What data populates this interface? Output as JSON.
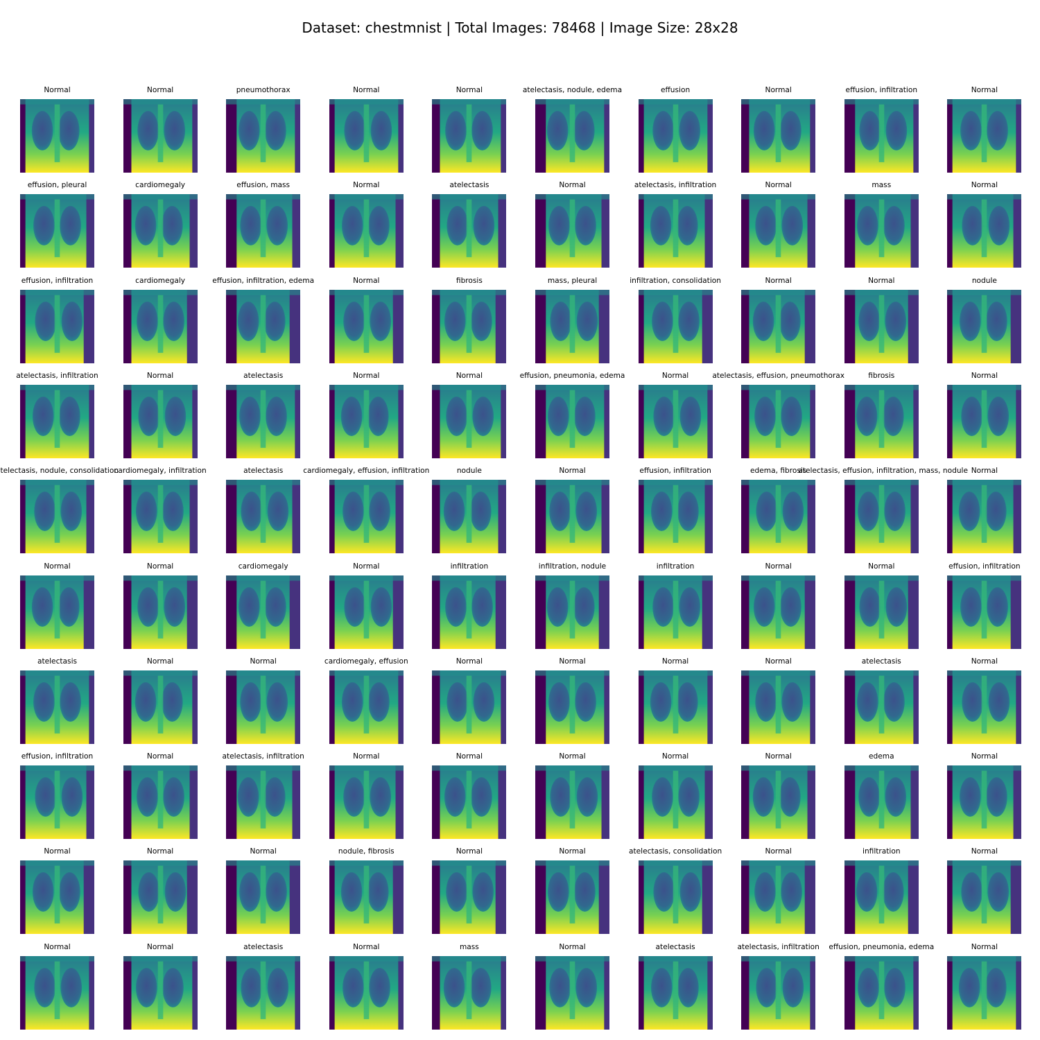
{
  "figure": {
    "title": "Dataset: chestmnist | Total Images: 78468 | Image Size: 28x28",
    "colormap": "viridis",
    "rows": 10,
    "cols": 10
  },
  "labels": [
    [
      "Normal",
      "Normal",
      "pneumothorax",
      "Normal",
      "Normal",
      "atelectasis, nodule, edema",
      "effusion",
      "Normal",
      "effusion, infiltration",
      "Normal"
    ],
    [
      "effusion, pleural",
      "cardiomegaly",
      "effusion, mass",
      "Normal",
      "atelectasis",
      "Normal",
      "atelectasis, infiltration",
      "Normal",
      "mass",
      "Normal"
    ],
    [
      "effusion, infiltration",
      "cardiomegaly",
      "effusion, infiltration, edema",
      "Normal",
      "fibrosis",
      "mass, pleural",
      "infiltration, consolidation",
      "Normal",
      "Normal",
      "nodule"
    ],
    [
      "atelectasis, infiltration",
      "Normal",
      "atelectasis",
      "Normal",
      "Normal",
      "effusion, pneumonia, edema",
      "Normal",
      "atelectasis, effusion, pneumothorax",
      "fibrosis",
      "Normal"
    ],
    [
      "atelectasis, nodule, consolidation",
      "cardiomegaly, infiltration",
      "atelectasis",
      "cardiomegaly, effusion, infiltration",
      "nodule",
      "Normal",
      "effusion, infiltration",
      "edema, fibrosis",
      "atelectasis, effusion, infiltration, mass, nodule",
      "Normal"
    ],
    [
      "Normal",
      "Normal",
      "cardiomegaly",
      "Normal",
      "infiltration",
      "infiltration, nodule",
      "infiltration",
      "Normal",
      "Normal",
      "effusion, infiltration"
    ],
    [
      "atelectasis",
      "Normal",
      "Normal",
      "cardiomegaly, effusion",
      "Normal",
      "Normal",
      "Normal",
      "Normal",
      "atelectasis",
      "Normal"
    ],
    [
      "effusion, infiltration",
      "Normal",
      "atelectasis, infiltration",
      "Normal",
      "Normal",
      "Normal",
      "Normal",
      "Normal",
      "edema",
      "Normal"
    ],
    [
      "Normal",
      "Normal",
      "Normal",
      "nodule, fibrosis",
      "Normal",
      "Normal",
      "atelectasis, consolidation",
      "Normal",
      "infiltration",
      "Normal"
    ],
    [
      "Normal",
      "Normal",
      "atelectasis",
      "Normal",
      "mass",
      "Normal",
      "atelectasis",
      "atelectasis, infiltration",
      "effusion, pneumonia, edema",
      "Normal"
    ]
  ]
}
